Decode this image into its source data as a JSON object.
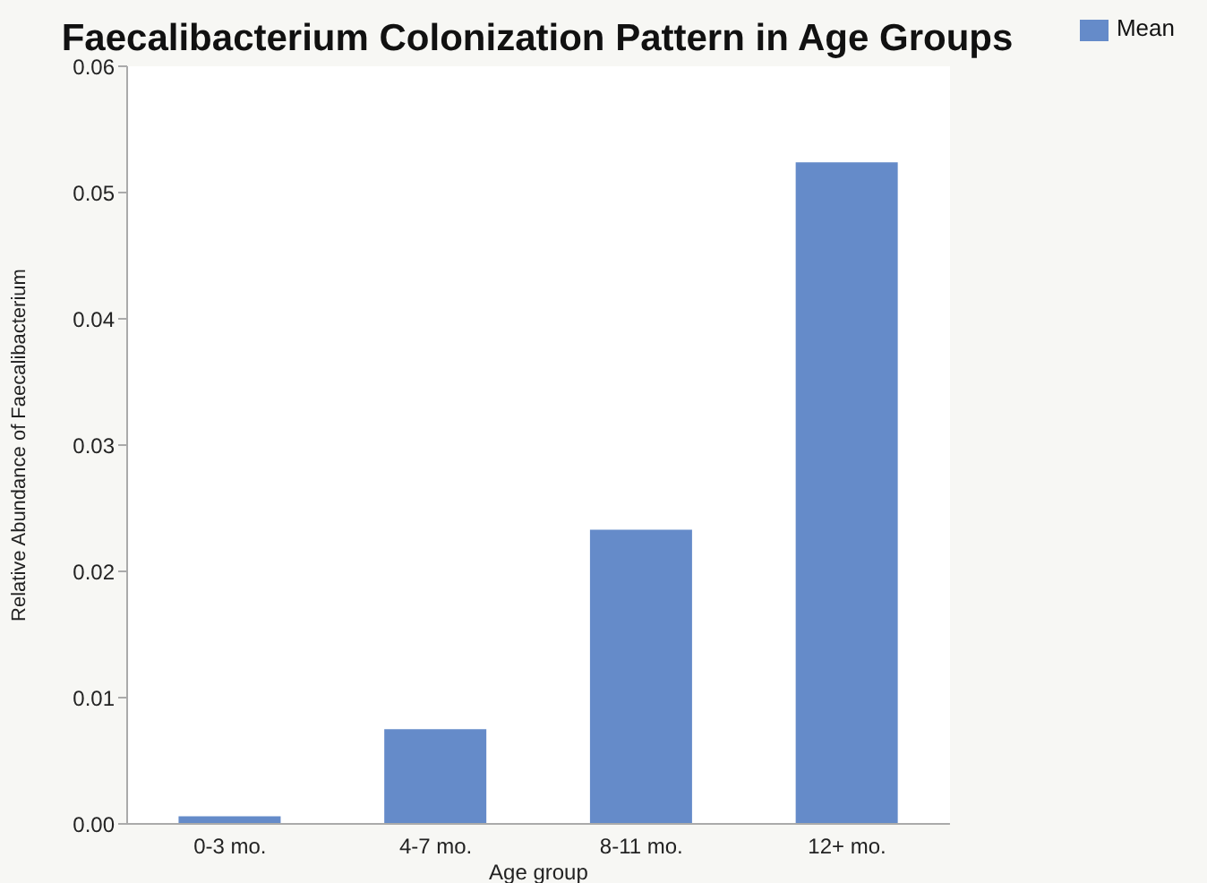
{
  "chart_data": {
    "type": "bar",
    "title": "Faecalibacterium Colonization Pattern in Age Groups",
    "xlabel": "Age group",
    "ylabel": "Relative Abundance of Faecalibacterium",
    "categories": [
      "0-3 mo.",
      "4-7 mo.",
      "8-11 mo.",
      "12+ mo."
    ],
    "series": [
      {
        "name": "Mean",
        "color": "#658bc9",
        "values": [
          0.0006,
          0.0075,
          0.0233,
          0.0524
        ]
      }
    ],
    "ylim": [
      0,
      0.06
    ],
    "yticks": [
      {
        "value": 0,
        "label": "0.00"
      },
      0.01,
      0.02,
      0.03,
      0.04,
      0.05,
      0.06
    ],
    "grid": false,
    "legend": "top right"
  }
}
